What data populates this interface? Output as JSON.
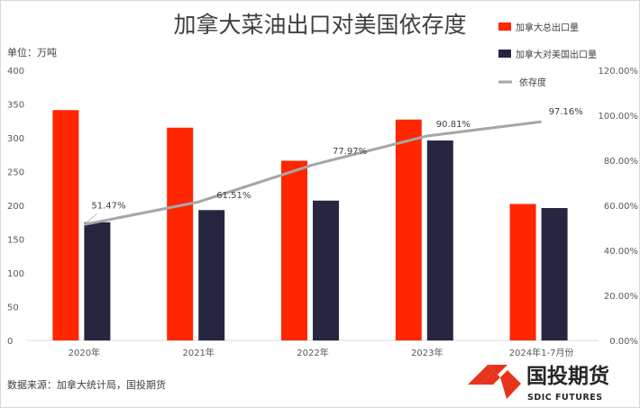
{
  "chart_data": {
    "type": "bar",
    "title": "加拿大菜油出口对美国依存度",
    "unit_label": "单位：万吨",
    "categories": [
      "2020年",
      "2021年",
      "2022年",
      "2023年",
      "2024年1-7月份"
    ],
    "series": [
      {
        "name": "加拿大总出口量",
        "type": "bar",
        "axis": "left",
        "color": "#ff2600",
        "values": [
          341,
          315,
          266,
          327,
          202
        ]
      },
      {
        "name": "加拿大对美国出口量",
        "type": "bar",
        "axis": "left",
        "color": "#262640",
        "values": [
          175,
          193,
          207,
          296,
          196
        ]
      },
      {
        "name": "依存度",
        "type": "line",
        "axis": "right",
        "color": "#a6a6a6",
        "values": [
          51.47,
          61.51,
          77.97,
          90.81,
          97.16
        ],
        "labels": [
          "51.47%",
          "61.51%",
          "77.97%",
          "90.81%",
          "97.16%"
        ]
      }
    ],
    "y_left": {
      "min": 0,
      "max": 400,
      "step": 50,
      "ticks": [
        "0",
        "50",
        "100",
        "150",
        "200",
        "250",
        "300",
        "350",
        "400"
      ]
    },
    "y_right": {
      "min": 0,
      "max": 120,
      "step": 20,
      "ticks": [
        "0.00%",
        "20.00%",
        "40.00%",
        "60.00%",
        "80.00%",
        "100.00%",
        "120.00%"
      ]
    },
    "legend_position": "top-right",
    "grid": false
  },
  "source_text": "数据来源：加拿大统计局，国投期货",
  "logo": {
    "name_cn": "国投期货",
    "name_en": "SDIC FUTURES",
    "color": "#e8341c"
  }
}
